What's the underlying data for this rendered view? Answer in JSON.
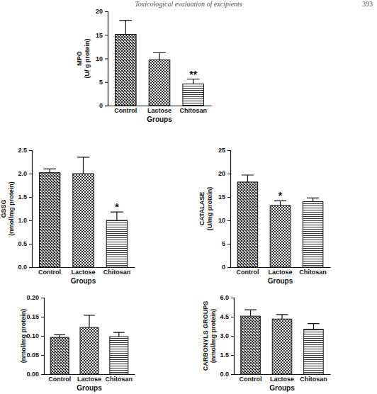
{
  "page_header": {
    "title": "Toxicological evaluation of excipients",
    "page": "393"
  },
  "chart_data": [
    {
      "type": "bar",
      "y_label": [
        "MPO",
        "(U/ g protein)"
      ],
      "x_label": "Groups",
      "categories": [
        "Control",
        "Lactose",
        "Chitosan"
      ],
      "values": [
        15.1,
        9.7,
        4.6
      ],
      "errors": [
        3.0,
        1.5,
        1.0
      ],
      "ylim": [
        0,
        20
      ],
      "yticks": [
        0,
        5,
        10,
        15,
        20
      ],
      "annotations": [
        {
          "text": "**",
          "category": "Chitosan"
        }
      ]
    },
    {
      "type": "bar",
      "y_label": [
        "GSSG",
        "(nmol/mg protein)"
      ],
      "x_label": "Groups",
      "categories": [
        "Control",
        "Lactose",
        "Chitosan"
      ],
      "values": [
        2.02,
        2.0,
        1.0
      ],
      "errors": [
        0.08,
        0.35,
        0.18
      ],
      "ylim": [
        0,
        2.5
      ],
      "yticks": [
        {
          "value": 0,
          "label": "0.0"
        },
        0.5,
        {
          "value": 1,
          "label": "1.0"
        },
        1.5,
        {
          "value": 2,
          "label": "2.0"
        },
        2.5
      ],
      "annotations": [
        {
          "text": "*",
          "category": "Chitosan"
        }
      ]
    },
    {
      "type": "bar",
      "y_label": [
        "CATALASE",
        "(U/mg protein)"
      ],
      "x_label": "Groups",
      "categories": [
        "Control",
        "Lactose",
        "Chitosan"
      ],
      "values": [
        18.2,
        13.2,
        14.0
      ],
      "errors": [
        1.5,
        1.0,
        0.8
      ],
      "ylim": [
        0,
        25
      ],
      "yticks": [
        0,
        5,
        10,
        15,
        20,
        25
      ],
      "annotations": [
        {
          "text": "*",
          "category": "Lactose"
        }
      ]
    },
    {
      "type": "bar",
      "y_label": [
        "(nmol/mg protein)"
      ],
      "x_label": "Groups",
      "categories": [
        "Control",
        "Lactose",
        "Chitosan"
      ],
      "values": [
        0.096,
        0.122,
        0.098
      ],
      "errors": [
        0.007,
        0.032,
        0.011
      ],
      "ylim": [
        0,
        0.2
      ],
      "yticks": [
        {
          "value": 0,
          "label": "0.00"
        },
        0.05,
        {
          "value": 0.1,
          "label": "0.10"
        },
        0.15,
        {
          "value": 0.2,
          "label": "0.20"
        }
      ]
    },
    {
      "type": "bar",
      "y_label": [
        "CARBONYLS GROUPS",
        "(nmol/mg protein)"
      ],
      "x_label": "Groups",
      "categories": [
        "Control",
        "Lactose",
        "Chitosan"
      ],
      "values": [
        4.55,
        4.32,
        3.52
      ],
      "errors": [
        0.5,
        0.35,
        0.45
      ],
      "ylim": [
        0,
        6
      ],
      "yticks": [
        {
          "value": 0,
          "label": "0.0"
        },
        1.5,
        {
          "value": 3,
          "label": "3.0"
        },
        4.5,
        {
          "value": 6,
          "label": "6.0"
        }
      ]
    }
  ]
}
